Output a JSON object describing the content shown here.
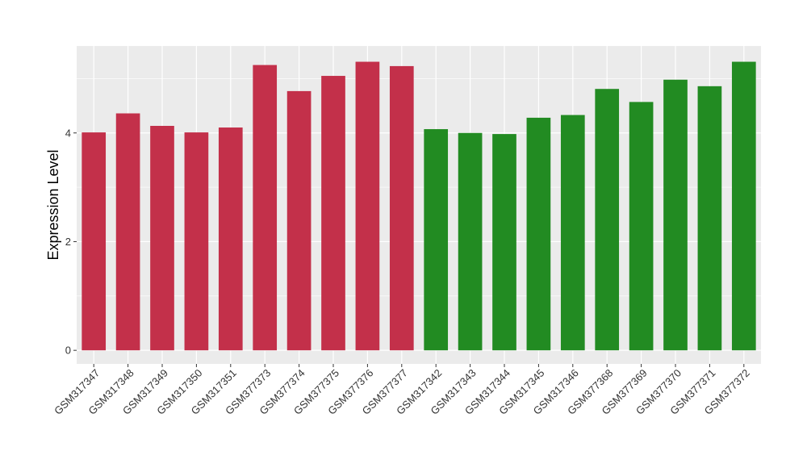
{
  "chart_data": {
    "type": "bar",
    "ylabel": "Expression Level",
    "xlabel": "",
    "ylim": [
      -0.25,
      5.6
    ],
    "yticks": [
      0,
      2,
      4
    ],
    "grid": true,
    "panel_color": "#EBEBEB",
    "grid_color": "#FFFFFF",
    "categories": [
      "GSM317347",
      "GSM317348",
      "GSM317349",
      "GSM317350",
      "GSM317351",
      "GSM377373",
      "GSM377374",
      "GSM377375",
      "GSM377376",
      "GSM377377",
      "GSM317342",
      "GSM317343",
      "GSM317344",
      "GSM317345",
      "GSM317346",
      "GSM377368",
      "GSM377369",
      "GSM377370",
      "GSM377371",
      "GSM377372"
    ],
    "values": [
      4.01,
      4.36,
      4.13,
      4.01,
      4.1,
      5.25,
      4.77,
      5.05,
      5.31,
      5.23,
      4.07,
      4.0,
      3.98,
      4.28,
      4.33,
      4.81,
      4.57,
      4.98,
      4.86,
      5.31
    ],
    "colors": [
      "#C3304A",
      "#C3304A",
      "#C3304A",
      "#C3304A",
      "#C3304A",
      "#C3304A",
      "#C3304A",
      "#C3304A",
      "#C3304A",
      "#C3304A",
      "#228B22",
      "#228B22",
      "#228B22",
      "#228B22",
      "#228B22",
      "#228B22",
      "#228B22",
      "#228B22",
      "#228B22",
      "#228B22"
    ]
  }
}
